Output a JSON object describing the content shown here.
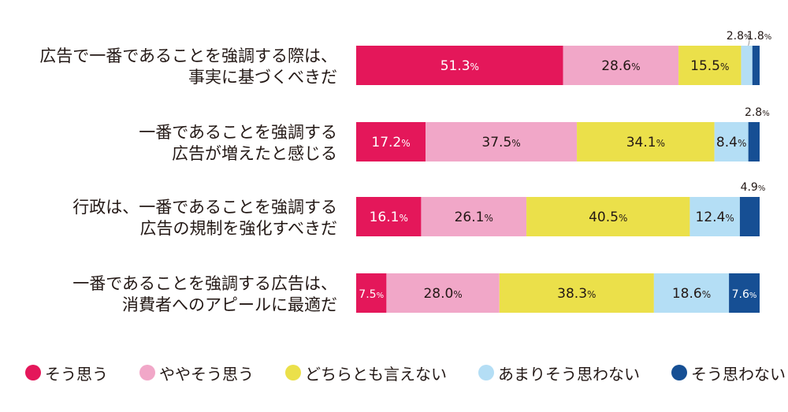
{
  "chart_data": {
    "type": "bar",
    "orientation": "horizontal",
    "stacked": true,
    "categories": [
      [
        "広告で一番であることを強調する際は、",
        "事実に基づくべきだ"
      ],
      [
        "一番であることを強調する",
        "広告が増えたと感じる"
      ],
      [
        "行政は、一番であることを強調する",
        "広告の規制を強化すべきだ"
      ],
      [
        "一番であることを強調する広告は、",
        "消費者へのアピールに最適だ"
      ]
    ],
    "series": [
      {
        "name": "そう思う",
        "color": "#e4175a",
        "values": [
          51.3,
          17.2,
          16.1,
          7.5
        ]
      },
      {
        "name": "ややそう思う",
        "color": "#f1a7c8",
        "values": [
          28.6,
          37.5,
          26.1,
          28.0
        ]
      },
      {
        "name": "どちらとも言えない",
        "color": "#ebe04a",
        "values": [
          15.5,
          34.1,
          40.5,
          38.3
        ]
      },
      {
        "name": "あまりそう思わない",
        "color": "#b4def5",
        "values": [
          2.8,
          8.4,
          12.4,
          18.6
        ]
      },
      {
        "name": "そう思わない",
        "color": "#164f94",
        "values": [
          1.8,
          2.8,
          4.9,
          7.6
        ]
      }
    ],
    "value_suffix": "%",
    "legend_position": "bottom",
    "grid": false
  }
}
